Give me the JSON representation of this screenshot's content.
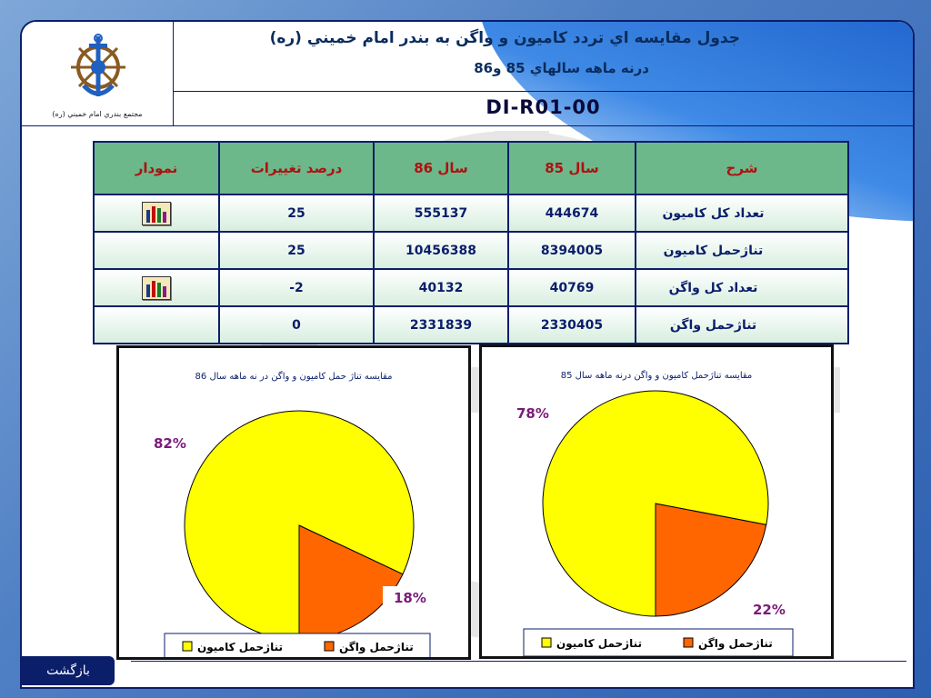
{
  "header": {
    "title_line1": "جدول مقايسه اي تردد كاميون و واگن به بندر امام خميني (ره)",
    "title_line2": "درنه ماهه سالهاي 85 و86",
    "doc_code": "DI-R01-00",
    "org_caption": "مجتمع بندري امام خميني (ره)"
  },
  "table": {
    "headers": {
      "desc": "شرح",
      "y85": "سال 85",
      "y86": "سال 86",
      "change": "درصد تغييرات",
      "chart": "نمودار"
    },
    "rows": [
      {
        "desc": "تعداد كل كاميون",
        "y85": "444674",
        "y86": "555137",
        "change": "25",
        "has_chart": true
      },
      {
        "desc": "تناژحمل كاميون",
        "y85": "8394005",
        "y86": "10456388",
        "change": "25",
        "has_chart": false
      },
      {
        "desc": "تعداد كل واگن",
        "y85": "40769",
        "y86": "40132",
        "change": "-2",
        "has_chart": true
      },
      {
        "desc": "تناژحمل واگن",
        "y85": "2330405",
        "y86": "2331839",
        "change": "0",
        "has_chart": false
      }
    ]
  },
  "chart_data": [
    {
      "type": "pie",
      "title": "مقايسه تناژ حمل كاميون و واگن در نه ماهه سال 86",
      "categories": [
        "تناژحمل كاميون",
        "تناژحمل واگن"
      ],
      "values": [
        82,
        18
      ],
      "labels": [
        "82%",
        "18%"
      ],
      "colors": [
        "#ffff00",
        "#ff6600"
      ],
      "legend": "bottom"
    },
    {
      "type": "pie",
      "title": "مقايسه تناژحمل كاميون و واگن درنه ماهه  سال 85",
      "categories": [
        "تناژحمل كاميون",
        "تناژحمل واگن"
      ],
      "values": [
        78,
        22
      ],
      "labels": [
        "78%",
        "22%"
      ],
      "colors": [
        "#ffff00",
        "#ff6600"
      ],
      "legend": "bottom"
    }
  ],
  "footer": {
    "back_label": "بازگشت"
  },
  "icons": {
    "chart": "bar-chart-icon",
    "logo": "anchor-wheel-logo"
  }
}
